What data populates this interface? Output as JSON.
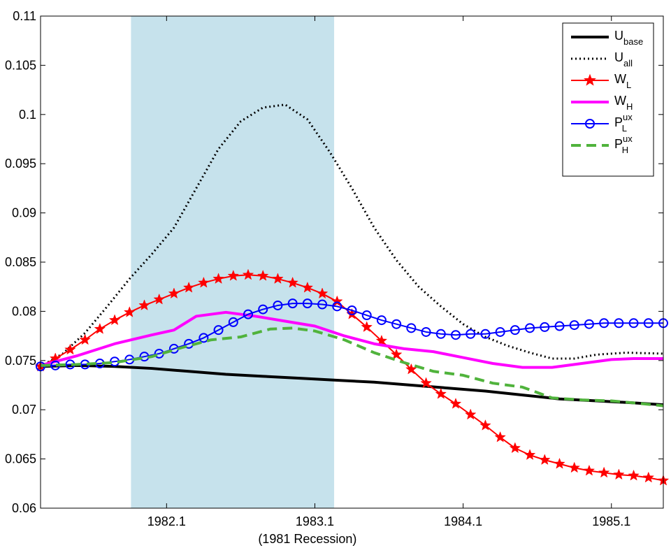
{
  "chart_data": {
    "type": "line",
    "title": "",
    "xlabel": "(1981 Recession)",
    "ylabel": "",
    "xlim": [
      1981.25,
      1985.45
    ],
    "ylim": [
      0.06,
      0.11
    ],
    "grid": false,
    "legend_placement": "top-right",
    "x_ticks": [
      {
        "value": 1982.1,
        "label": "1982.1"
      },
      {
        "value": 1983.1,
        "label": "1983.1"
      },
      {
        "value": 1984.1,
        "label": "1984.1"
      },
      {
        "value": 1985.1,
        "label": "1985.1"
      }
    ],
    "y_ticks": [
      {
        "value": 0.06,
        "label": "0.06"
      },
      {
        "value": 0.065,
        "label": "0.065"
      },
      {
        "value": 0.07,
        "label": "0.07"
      },
      {
        "value": 0.075,
        "label": "0.075"
      },
      {
        "value": 0.08,
        "label": "0.08"
      },
      {
        "value": 0.085,
        "label": "0.085"
      },
      {
        "value": 0.09,
        "label": "0.09"
      },
      {
        "value": 0.095,
        "label": "0.095"
      },
      {
        "value": 0.1,
        "label": "0.1"
      },
      {
        "value": 0.105,
        "label": "0.105"
      },
      {
        "value": 0.11,
        "label": "0.11"
      }
    ],
    "shaded_region": {
      "x_start": 1981.86,
      "x_end": 1983.23,
      "color": "#c6e2ec"
    },
    "series": [
      {
        "name": "U",
        "subscript": "base",
        "superscript": "",
        "color": "#000000",
        "style": "solid",
        "marker": "none",
        "width": 4,
        "x": [
          1981.25,
          1981.5,
          1981.75,
          1982.0,
          1982.25,
          1982.5,
          1982.75,
          1983.0,
          1983.25,
          1983.5,
          1983.75,
          1984.0,
          1984.25,
          1984.5,
          1984.75,
          1985.0,
          1985.25,
          1985.45
        ],
        "y": [
          0.0744,
          0.0745,
          0.0744,
          0.0742,
          0.0739,
          0.0736,
          0.0734,
          0.0732,
          0.073,
          0.0728,
          0.0725,
          0.0722,
          0.0719,
          0.0715,
          0.0711,
          0.0709,
          0.0707,
          0.0705
        ]
      },
      {
        "name": "U",
        "subscript": "all",
        "superscript": "",
        "color": "#000000",
        "style": "dotted",
        "marker": "none",
        "width": 3,
        "x": [
          1981.25,
          1981.4,
          1981.55,
          1981.7,
          1981.85,
          1982.0,
          1982.15,
          1982.3,
          1982.45,
          1982.6,
          1982.75,
          1982.9,
          1983.05,
          1983.2,
          1983.35,
          1983.5,
          1983.65,
          1983.8,
          1983.95,
          1984.1,
          1984.25,
          1984.4,
          1984.55,
          1984.7,
          1984.85,
          1985.0,
          1985.2,
          1985.45
        ],
        "y": [
          0.0744,
          0.0757,
          0.0778,
          0.0805,
          0.0833,
          0.0858,
          0.0885,
          0.0925,
          0.0965,
          0.0993,
          0.1007,
          0.101,
          0.0995,
          0.0962,
          0.0925,
          0.0885,
          0.0852,
          0.0825,
          0.0805,
          0.0787,
          0.0774,
          0.0765,
          0.0758,
          0.0752,
          0.0752,
          0.0756,
          0.0758,
          0.0757
        ]
      },
      {
        "name": "W",
        "subscript": "L",
        "superscript": "",
        "color": "#ff0000",
        "style": "solid",
        "marker": "star",
        "width": 2,
        "x": [
          1981.25,
          1981.35,
          1981.45,
          1981.55,
          1981.65,
          1981.75,
          1981.85,
          1981.95,
          1982.05,
          1982.15,
          1982.25,
          1982.35,
          1982.45,
          1982.55,
          1982.65,
          1982.75,
          1982.85,
          1982.95,
          1983.05,
          1983.15,
          1983.25,
          1983.35,
          1983.45,
          1983.55,
          1983.65,
          1983.75,
          1983.85,
          1983.95,
          1984.05,
          1984.15,
          1984.25,
          1984.35,
          1984.45,
          1984.55,
          1984.65,
          1984.75,
          1984.85,
          1984.95,
          1985.05,
          1985.15,
          1985.25,
          1985.35,
          1985.45
        ],
        "y": [
          0.0744,
          0.0752,
          0.0761,
          0.0771,
          0.0782,
          0.0791,
          0.0799,
          0.0806,
          0.0812,
          0.0818,
          0.0824,
          0.0829,
          0.0833,
          0.0836,
          0.0837,
          0.0836,
          0.0833,
          0.0829,
          0.0824,
          0.0818,
          0.081,
          0.0797,
          0.0784,
          0.077,
          0.0756,
          0.0741,
          0.0727,
          0.0716,
          0.0706,
          0.0695,
          0.0684,
          0.0672,
          0.0661,
          0.0654,
          0.0649,
          0.0645,
          0.0641,
          0.0638,
          0.0636,
          0.0634,
          0.0633,
          0.0631,
          0.0628
        ]
      },
      {
        "name": "W",
        "subscript": "H",
        "superscript": "",
        "color": "#ff00ff",
        "style": "solid",
        "marker": "none",
        "width": 4,
        "x": [
          1981.25,
          1981.5,
          1981.75,
          1982.0,
          1982.15,
          1982.3,
          1982.5,
          1982.7,
          1982.9,
          1983.1,
          1983.3,
          1983.5,
          1983.7,
          1983.9,
          1984.1,
          1984.3,
          1984.5,
          1984.7,
          1984.9,
          1985.1,
          1985.25,
          1985.45
        ],
        "y": [
          0.0745,
          0.0755,
          0.0767,
          0.0776,
          0.0781,
          0.0795,
          0.0799,
          0.0795,
          0.079,
          0.0785,
          0.0775,
          0.0767,
          0.0762,
          0.0759,
          0.0753,
          0.0747,
          0.0743,
          0.0743,
          0.0747,
          0.0751,
          0.0752,
          0.0752
        ]
      },
      {
        "name": "P",
        "subscript": "L",
        "superscript": "ux",
        "color": "#0000ff",
        "style": "solid",
        "marker": "circle",
        "width": 2,
        "x": [
          1981.25,
          1981.35,
          1981.45,
          1981.55,
          1981.65,
          1981.75,
          1981.85,
          1981.95,
          1982.05,
          1982.15,
          1982.25,
          1982.35,
          1982.45,
          1982.55,
          1982.65,
          1982.75,
          1982.85,
          1982.95,
          1983.05,
          1983.15,
          1983.25,
          1983.35,
          1983.45,
          1983.55,
          1983.65,
          1983.75,
          1983.85,
          1983.95,
          1984.05,
          1984.15,
          1984.25,
          1984.35,
          1984.45,
          1984.55,
          1984.65,
          1984.75,
          1984.85,
          1984.95,
          1985.05,
          1985.15,
          1985.25,
          1985.35,
          1985.45
        ],
        "y": [
          0.0744,
          0.0745,
          0.0746,
          0.0746,
          0.0747,
          0.0749,
          0.0751,
          0.0754,
          0.0757,
          0.0762,
          0.0767,
          0.0773,
          0.0781,
          0.0789,
          0.0797,
          0.0802,
          0.0806,
          0.0808,
          0.0808,
          0.0807,
          0.0805,
          0.0801,
          0.0796,
          0.0791,
          0.0787,
          0.0783,
          0.0779,
          0.0777,
          0.0776,
          0.0777,
          0.0777,
          0.0779,
          0.0781,
          0.0783,
          0.0784,
          0.0785,
          0.0786,
          0.0787,
          0.0788,
          0.0788,
          0.0788,
          0.0788,
          0.0788
        ]
      },
      {
        "name": "P",
        "subscript": "H",
        "superscript": "ux",
        "color": "#50b33c",
        "style": "dashed",
        "marker": "none",
        "width": 4,
        "x": [
          1981.25,
          1981.5,
          1981.75,
          1982.0,
          1982.2,
          1982.4,
          1982.6,
          1982.8,
          1982.95,
          1983.1,
          1983.3,
          1983.5,
          1983.7,
          1983.9,
          1984.1,
          1984.3,
          1984.5,
          1984.7,
          1984.9,
          1985.1,
          1985.25,
          1985.45
        ],
        "y": [
          0.0745,
          0.0746,
          0.0748,
          0.0754,
          0.0763,
          0.0771,
          0.0774,
          0.0782,
          0.0783,
          0.078,
          0.0771,
          0.0758,
          0.0748,
          0.0739,
          0.0735,
          0.0727,
          0.0723,
          0.0712,
          0.071,
          0.0709,
          0.0707,
          0.0704
        ]
      }
    ]
  }
}
